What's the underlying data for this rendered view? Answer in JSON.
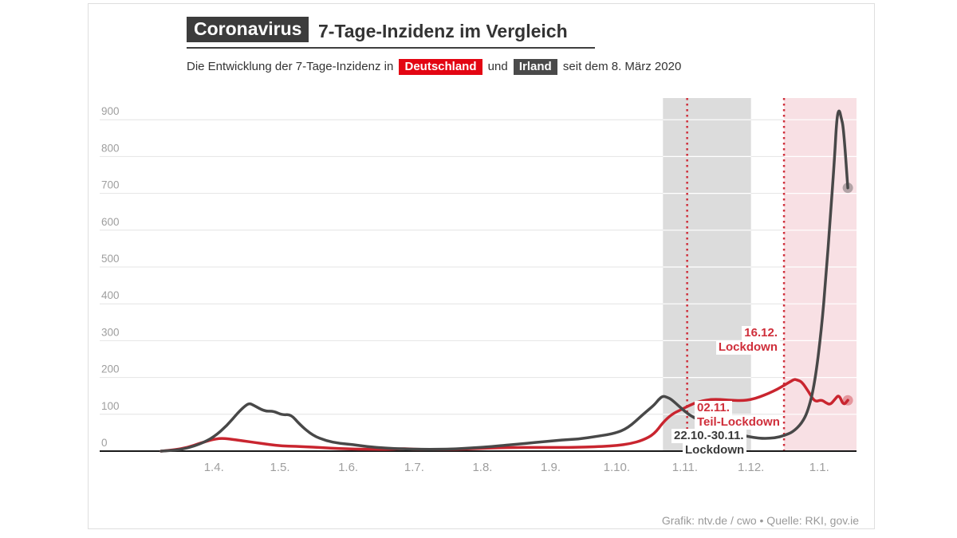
{
  "header": {
    "kicker": "Coronavirus",
    "title": "7-Tage-Inzidenz im Vergleich",
    "subtitle_prefix": "Die Entwicklung der 7-Tage-Inzidenz in",
    "badge_germany": "Deutschland",
    "subtitle_middle": "und",
    "badge_ireland": "Irland",
    "subtitle_suffix": "seit dem 8. März 2020"
  },
  "footer": {
    "credit": "Grafik: ntv.de / cwo • Quelle: RKI, gov.ie"
  },
  "colors": {
    "germany_badge": "#e30613",
    "ireland_badge": "#4a4a4a",
    "germany_line": "#c9252f",
    "ireland_line": "#484848",
    "lockdown_band_ireland": "#dcdcdc",
    "lockdown_band_germany": "#f8e0e4",
    "marker_line": "#cf2e3a",
    "grid": "#e4e4e4",
    "axis": "#1a1a1a",
    "tick_label": "#9e9e9e"
  },
  "chart_data": {
    "type": "line",
    "title": "7-Tage-Inzidenz im Vergleich",
    "ylabel": "7-Tage-Inzidenz",
    "ylim": [
      0,
      900
    ],
    "grid": true,
    "legend_position": "inline-subtitle-badges",
    "y_axis": {
      "ticks": [
        0,
        100,
        200,
        300,
        400,
        500,
        600,
        700,
        800,
        900
      ]
    },
    "x_axis": {
      "start_date": "2020-03-08",
      "ticks": [
        {
          "label": "1.4.",
          "date": "2020-04-01"
        },
        {
          "label": "1.5.",
          "date": "2020-05-01"
        },
        {
          "label": "1.6.",
          "date": "2020-06-01"
        },
        {
          "label": "1.7.",
          "date": "2020-07-01"
        },
        {
          "label": "1.8.",
          "date": "2020-08-01"
        },
        {
          "label": "1.9.",
          "date": "2020-09-01"
        },
        {
          "label": "1.10.",
          "date": "2020-10-01"
        },
        {
          "label": "1.11.",
          "date": "2020-11-01"
        },
        {
          "label": "1.12.",
          "date": "2020-12-01"
        },
        {
          "label": "1.1.",
          "date": "2021-01-01"
        }
      ]
    },
    "regions": [
      {
        "name": "lockdown-ireland",
        "start": "2020-10-22",
        "end": "2020-12-01",
        "color": "#dcdcdc"
      },
      {
        "name": "lockdown-germany",
        "start": "2020-12-16",
        "end": null,
        "color": "#f8e0e4"
      }
    ],
    "markers": [
      {
        "name": "teil-lockdown-germany",
        "date": "2020-11-02",
        "color": "#cf2e3a"
      },
      {
        "name": "lockdown-germany",
        "date": "2020-12-16",
        "color": "#cf2e3a"
      }
    ],
    "annotations": {
      "lockdown_de": {
        "line1": "16.12.",
        "line2": "Lockdown",
        "color": "#cf2e3a"
      },
      "teil_lockdown_de": {
        "line1": "02.11.",
        "line2": "Teil-Lockdown",
        "color": "#cf2e3a"
      },
      "lockdown_ie": {
        "line1": "22.10.-30.11.",
        "line2": "Lockdown",
        "color": "#3a3a3a"
      }
    },
    "series": [
      {
        "name": "Deutschland",
        "color": "#c9252f",
        "end_dot": true,
        "points": [
          [
            "2020-03-08",
            0
          ],
          [
            "2020-03-14",
            3
          ],
          [
            "2020-03-20",
            10
          ],
          [
            "2020-03-26",
            22
          ],
          [
            "2020-03-31",
            31
          ],
          [
            "2020-04-04",
            35
          ],
          [
            "2020-04-08",
            33
          ],
          [
            "2020-04-14",
            28
          ],
          [
            "2020-04-20",
            23
          ],
          [
            "2020-04-26",
            18
          ],
          [
            "2020-05-02",
            14
          ],
          [
            "2020-05-08",
            13
          ],
          [
            "2020-05-16",
            11
          ],
          [
            "2020-05-24",
            8
          ],
          [
            "2020-06-01",
            6
          ],
          [
            "2020-06-10",
            5
          ],
          [
            "2020-06-20",
            5
          ],
          [
            "2020-06-26",
            7
          ],
          [
            "2020-07-02",
            5
          ],
          [
            "2020-07-10",
            5
          ],
          [
            "2020-07-20",
            5
          ],
          [
            "2020-07-30",
            7
          ],
          [
            "2020-08-08",
            9
          ],
          [
            "2020-08-16",
            10
          ],
          [
            "2020-08-24",
            10
          ],
          [
            "2020-09-01",
            10
          ],
          [
            "2020-09-09",
            10
          ],
          [
            "2020-09-17",
            11
          ],
          [
            "2020-09-25",
            13
          ],
          [
            "2020-10-01",
            15
          ],
          [
            "2020-10-07",
            20
          ],
          [
            "2020-10-13",
            30
          ],
          [
            "2020-10-18",
            46
          ],
          [
            "2020-10-22",
            78
          ],
          [
            "2020-10-26",
            100
          ],
          [
            "2020-10-30",
            112
          ],
          [
            "2020-11-03",
            124
          ],
          [
            "2020-11-07",
            134
          ],
          [
            "2020-11-11",
            139
          ],
          [
            "2020-11-15",
            141
          ],
          [
            "2020-11-19",
            139
          ],
          [
            "2020-11-23",
            138
          ],
          [
            "2020-11-27",
            137
          ],
          [
            "2020-12-01",
            140
          ],
          [
            "2020-12-05",
            147
          ],
          [
            "2020-12-09",
            157
          ],
          [
            "2020-12-13",
            168
          ],
          [
            "2020-12-17",
            182
          ],
          [
            "2020-12-20",
            193
          ],
          [
            "2020-12-21",
            195
          ],
          [
            "2020-12-22",
            193
          ],
          [
            "2020-12-24",
            189
          ],
          [
            "2020-12-27",
            163
          ],
          [
            "2020-12-30",
            133
          ],
          [
            "2021-01-02",
            140
          ],
          [
            "2021-01-04",
            131
          ],
          [
            "2021-01-06",
            126
          ],
          [
            "2021-01-08",
            140
          ],
          [
            "2021-01-10",
            154
          ],
          [
            "2021-01-12",
            124
          ],
          [
            "2021-01-14",
            138
          ]
        ]
      },
      {
        "name": "Irland",
        "color": "#484848",
        "end_dot": true,
        "points": [
          [
            "2020-03-08",
            0
          ],
          [
            "2020-03-14",
            2
          ],
          [
            "2020-03-20",
            8
          ],
          [
            "2020-03-26",
            20
          ],
          [
            "2020-04-01",
            38
          ],
          [
            "2020-04-07",
            70
          ],
          [
            "2020-04-12",
            105
          ],
          [
            "2020-04-15",
            122
          ],
          [
            "2020-04-17",
            130
          ],
          [
            "2020-04-19",
            125
          ],
          [
            "2020-04-24",
            108
          ],
          [
            "2020-04-28",
            109
          ],
          [
            "2020-05-02",
            98
          ],
          [
            "2020-05-06",
            100
          ],
          [
            "2020-05-10",
            72
          ],
          [
            "2020-05-16",
            42
          ],
          [
            "2020-05-22",
            28
          ],
          [
            "2020-05-28",
            21
          ],
          [
            "2020-06-03",
            18
          ],
          [
            "2020-06-10",
            12
          ],
          [
            "2020-06-18",
            8
          ],
          [
            "2020-06-26",
            6
          ],
          [
            "2020-07-04",
            5
          ],
          [
            "2020-07-12",
            5
          ],
          [
            "2020-07-20",
            6
          ],
          [
            "2020-07-28",
            9
          ],
          [
            "2020-08-05",
            12
          ],
          [
            "2020-08-13",
            17
          ],
          [
            "2020-08-21",
            21
          ],
          [
            "2020-08-29",
            26
          ],
          [
            "2020-09-06",
            30
          ],
          [
            "2020-09-14",
            33
          ],
          [
            "2020-09-22",
            40
          ],
          [
            "2020-09-30",
            48
          ],
          [
            "2020-10-06",
            62
          ],
          [
            "2020-10-13",
            100
          ],
          [
            "2020-10-18",
            125
          ],
          [
            "2020-10-20",
            140
          ],
          [
            "2020-10-22",
            150
          ],
          [
            "2020-10-24",
            146
          ],
          [
            "2020-10-26",
            140
          ],
          [
            "2020-10-30",
            118
          ],
          [
            "2020-11-03",
            98
          ],
          [
            "2020-11-07",
            85
          ],
          [
            "2020-11-11",
            75
          ],
          [
            "2020-11-15",
            68
          ],
          [
            "2020-11-19",
            60
          ],
          [
            "2020-11-23",
            50
          ],
          [
            "2020-11-27",
            43
          ],
          [
            "2020-12-02",
            37
          ],
          [
            "2020-12-07",
            34
          ],
          [
            "2020-12-12",
            36
          ],
          [
            "2020-12-16",
            42
          ],
          [
            "2020-12-20",
            52
          ],
          [
            "2020-12-24",
            75
          ],
          [
            "2020-12-27",
            110
          ],
          [
            "2020-12-30",
            185
          ],
          [
            "2021-01-02",
            330
          ],
          [
            "2021-01-04",
            470
          ],
          [
            "2021-01-06",
            630
          ],
          [
            "2021-01-08",
            800
          ],
          [
            "2021-01-09",
            905
          ],
          [
            "2021-01-10",
            930
          ],
          [
            "2021-01-11",
            905
          ],
          [
            "2021-01-12",
            880
          ],
          [
            "2021-01-14",
            715
          ]
        ]
      }
    ]
  }
}
